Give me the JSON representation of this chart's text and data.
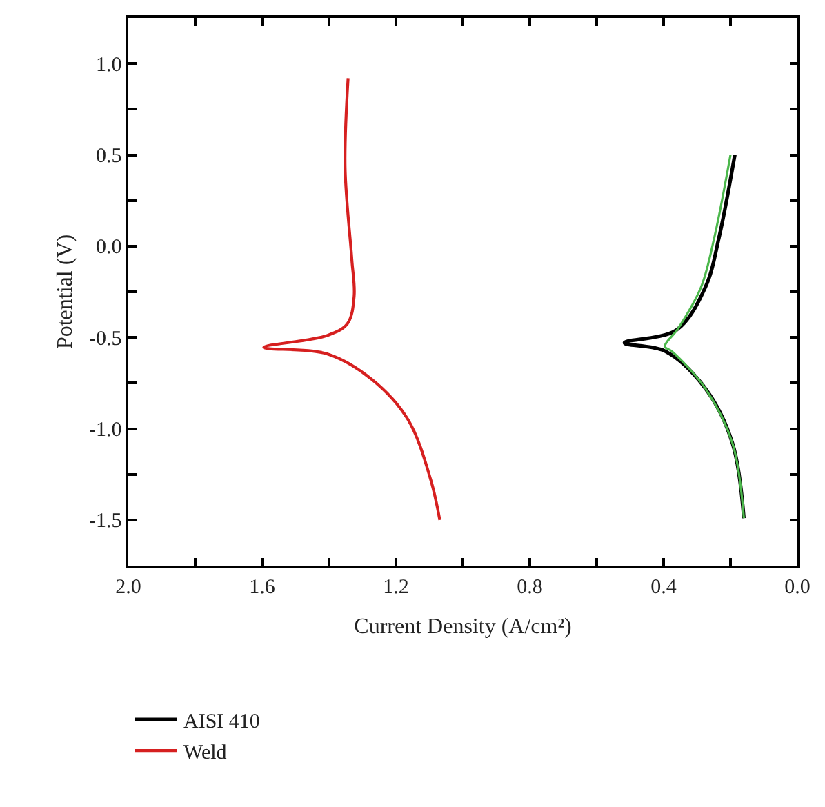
{
  "chart_data": {
    "type": "line",
    "xlabel": "Current Density (A/cm²)",
    "ylabel": "Potential (V)",
    "xlim": [
      2.0,
      0.0
    ],
    "ylim": [
      -1.75,
      1.25
    ],
    "xticks": [
      {
        "value": 2.0,
        "label": "2.0"
      },
      {
        "value": 1.8,
        "label": null
      },
      {
        "value": 1.6,
        "label": "1.6"
      },
      {
        "value": 1.4,
        "label": null
      },
      {
        "value": 1.2,
        "label": "1.2"
      },
      {
        "value": 1.0,
        "label": null
      },
      {
        "value": 0.8,
        "label": "0.8"
      },
      {
        "value": 0.6,
        "label": null
      },
      {
        "value": 0.4,
        "label": "0.4"
      },
      {
        "value": 0.2,
        "label": null
      },
      {
        "value": 0.0,
        "label": "0.0"
      }
    ],
    "yticks": [
      {
        "value": -1.5,
        "label": "-1.5"
      },
      {
        "value": -1.25,
        "label": null
      },
      {
        "value": -1.0,
        "label": "-1.0"
      },
      {
        "value": -0.75,
        "label": null
      },
      {
        "value": -0.5,
        "label": "-0.5"
      },
      {
        "value": -0.25,
        "label": null
      },
      {
        "value": 0.0,
        "label": "0.0"
      },
      {
        "value": 0.25,
        "label": null
      },
      {
        "value": 0.5,
        "label": "0.5"
      },
      {
        "value": 0.75,
        "label": null
      },
      {
        "value": 1.0,
        "label": "1.0"
      }
    ],
    "legend": "bottom left",
    "marker": "none",
    "line_style": "solid",
    "series": [
      {
        "name": "AISI 410",
        "color": "#000000",
        "x": [
          0.187,
          0.234,
          0.275,
          0.362,
          0.517,
          0.396,
          0.275,
          0.194,
          0.16
        ],
        "values": [
          0.5,
          0.05,
          -0.225,
          -0.46,
          -0.53,
          -0.575,
          -0.78,
          -1.08,
          -1.49
        ]
      },
      {
        "name": "Weld",
        "color": "#d62020",
        "x": [
          1.343,
          1.352,
          1.332,
          1.325,
          1.345,
          1.406,
          1.595,
          1.406,
          1.272,
          1.164,
          1.096,
          1.069
        ],
        "values": [
          0.92,
          0.43,
          -0.07,
          -0.275,
          -0.425,
          -0.49,
          -0.555,
          -0.59,
          -0.73,
          -0.95,
          -1.28,
          -1.5
        ]
      },
      {
        "color": "#4cb84c",
        "x": [
          0.2,
          0.248,
          0.288,
          0.356,
          0.396,
          0.376,
          0.275,
          0.194,
          0.16
        ],
        "values": [
          0.5,
          0.05,
          -0.225,
          -0.45,
          -0.55,
          -0.575,
          -0.78,
          -1.08,
          -1.49
        ]
      }
    ]
  }
}
